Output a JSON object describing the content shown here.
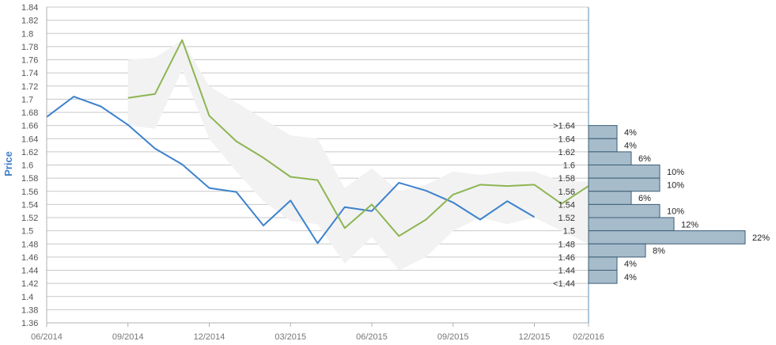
{
  "chart_data": {
    "type": "line",
    "title": "",
    "ylabel": "Price",
    "xlabel": "",
    "ylim": [
      1.36,
      1.84
    ],
    "y_ticks": [
      "1.36",
      "1.38",
      "1.4",
      "1.42",
      "1.44",
      "1.46",
      "1.48",
      "1.5",
      "1.52",
      "1.54",
      "1.56",
      "1.58",
      "1.6",
      "1.62",
      "1.64",
      "1.66",
      "1.68",
      "1.7",
      "1.72",
      "1.74",
      "1.76",
      "1.78",
      "1.8",
      "1.82",
      "1.84"
    ],
    "x_tick_labels": [
      "06/2014",
      "09/2014",
      "12/2014",
      "03/2015",
      "06/2015",
      "09/2015",
      "12/2015",
      "02/2016"
    ],
    "x_months": [
      "2014-06",
      "2014-07",
      "2014-08",
      "2014-09",
      "2014-10",
      "2014-11",
      "2014-12",
      "2015-01",
      "2015-02",
      "2015-03",
      "2015-04",
      "2015-05",
      "2015-06",
      "2015-07",
      "2015-08",
      "2015-09",
      "2015-10",
      "2015-11",
      "2015-12",
      "2016-01",
      "2016-02"
    ],
    "grid": true,
    "series": [
      {
        "color": "#3d82cc",
        "values": [
          1.673,
          1.704,
          1.689,
          1.661,
          1.625,
          1.601,
          1.565,
          1.559,
          1.508,
          1.546,
          1.481,
          1.536,
          1.53,
          1.573,
          1.561,
          1.543,
          1.517,
          1.545,
          1.521,
          null,
          null
        ]
      },
      {
        "color": "#8db553",
        "values": [
          null,
          null,
          null,
          1.702,
          1.708,
          1.79,
          1.675,
          1.636,
          1.611,
          1.582,
          1.577,
          1.504,
          1.54,
          1.492,
          1.517,
          1.555,
          1.57,
          1.568,
          1.57,
          1.541,
          1.568
        ]
      }
    ],
    "band": {
      "color": "#f2f2f2",
      "upper": [
        null,
        null,
        null,
        1.76,
        1.763,
        1.79,
        1.72,
        1.695,
        1.67,
        1.645,
        1.64,
        1.565,
        1.595,
        1.56,
        1.57,
        1.59,
        1.585,
        1.59,
        1.59,
        1.575,
        1.575
      ],
      "lower": [
        null,
        null,
        null,
        1.66,
        1.655,
        1.745,
        1.64,
        1.59,
        1.545,
        1.515,
        1.51,
        1.45,
        1.49,
        1.44,
        1.46,
        1.5,
        1.52,
        1.51,
        1.52,
        1.5,
        1.48
      ]
    },
    "distribution": {
      "color": "#a6bccb",
      "bins": [
        {
          "label": ">1.64",
          "low": 1.64,
          "high": 1.66,
          "pct": 4,
          "pct_label": "4%"
        },
        {
          "label": "1.64",
          "low": 1.62,
          "high": 1.64,
          "pct": 4,
          "pct_label": "4%"
        },
        {
          "label": "1.62",
          "low": 1.6,
          "high": 1.62,
          "pct": 6,
          "pct_label": "6%"
        },
        {
          "label": "1.6",
          "low": 1.58,
          "high": 1.6,
          "pct": 10,
          "pct_label": "10%"
        },
        {
          "label": "1.58",
          "low": 1.56,
          "high": 1.58,
          "pct": 10,
          "pct_label": "10%"
        },
        {
          "label": "1.56",
          "low": 1.54,
          "high": 1.56,
          "pct": 6,
          "pct_label": "6%"
        },
        {
          "label": "1.54",
          "low": 1.52,
          "high": 1.54,
          "pct": 10,
          "pct_label": "10%"
        },
        {
          "label": "1.52",
          "low": 1.5,
          "high": 1.52,
          "pct": 12,
          "pct_label": "12%"
        },
        {
          "label": "1.5",
          "low": 1.48,
          "high": 1.5,
          "pct": 22,
          "pct_label": "22%"
        },
        {
          "label": "1.48",
          "low": 1.46,
          "high": 1.48,
          "pct": 8,
          "pct_label": "8%"
        },
        {
          "label": "1.46",
          "low": 1.44,
          "high": 1.46,
          "pct": 4,
          "pct_label": "4%"
        },
        {
          "label": "1.44",
          "low": 1.42,
          "high": 1.44,
          "pct": 4,
          "pct_label": "4%"
        },
        {
          "label": "<1.44",
          "low": 1.42,
          "high": 1.42,
          "pct": 0,
          "pct_label": ""
        }
      ]
    }
  }
}
